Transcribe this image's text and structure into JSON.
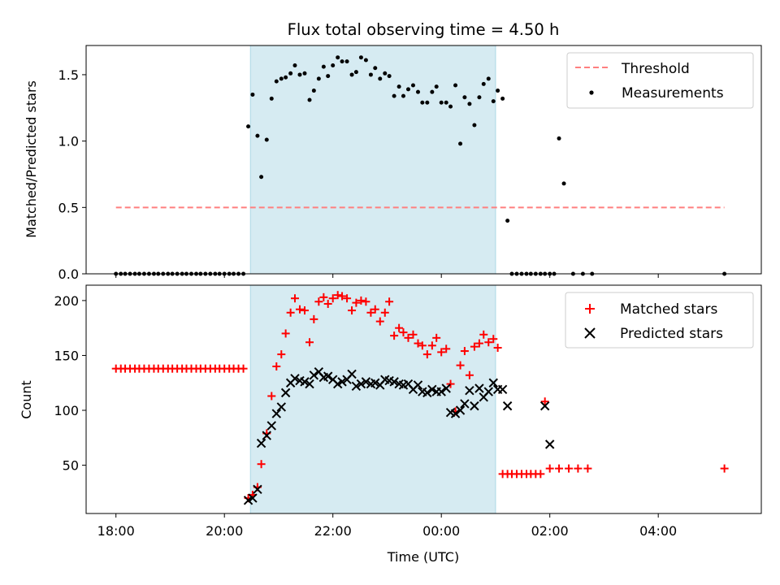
{
  "chart_data": [
    {
      "type": "scatter",
      "title": "Flux total observing time = 4.50 h",
      "xlabel": "",
      "ylabel": "Matched/Predicted stars",
      "xlim_hours": [
        17.45,
        29.9
      ],
      "ylim": [
        0,
        1.72
      ],
      "yticks": [
        0.0,
        0.5,
        1.0,
        1.5
      ],
      "ytick_labels": [
        "0.0",
        "0.5",
        "1.0",
        "1.5"
      ],
      "observing_window_hours": [
        20.48,
        25.0
      ],
      "shade_color": "#add8e6",
      "legend_position": "top-right",
      "threshold": {
        "name": "Threshold",
        "value": 0.5,
        "x_range_hours": [
          18.0,
          29.22
        ],
        "color": "#ff7f7f",
        "style": "dashed"
      },
      "series": [
        {
          "name": "Measurements",
          "marker": "dot",
          "color": "#000000",
          "points": [
            [
              18.0,
              0
            ],
            [
              18.09,
              0
            ],
            [
              18.17,
              0
            ],
            [
              18.26,
              0
            ],
            [
              18.35,
              0
            ],
            [
              18.43,
              0
            ],
            [
              18.52,
              0
            ],
            [
              18.61,
              0
            ],
            [
              18.7,
              0
            ],
            [
              18.78,
              0
            ],
            [
              18.87,
              0
            ],
            [
              18.96,
              0
            ],
            [
              19.04,
              0
            ],
            [
              19.13,
              0
            ],
            [
              19.22,
              0
            ],
            [
              19.3,
              0
            ],
            [
              19.39,
              0
            ],
            [
              19.48,
              0
            ],
            [
              19.56,
              0
            ],
            [
              19.65,
              0
            ],
            [
              19.74,
              0
            ],
            [
              19.83,
              0
            ],
            [
              19.91,
              0
            ],
            [
              20.0,
              0
            ],
            [
              20.09,
              0
            ],
            [
              20.17,
              0
            ],
            [
              20.26,
              0
            ],
            [
              20.35,
              0
            ],
            [
              20.44,
              1.11
            ],
            [
              20.52,
              1.35
            ],
            [
              20.61,
              1.04
            ],
            [
              20.68,
              0.73
            ],
            [
              20.78,
              1.01
            ],
            [
              20.87,
              1.32
            ],
            [
              20.96,
              1.45
            ],
            [
              21.05,
              1.47
            ],
            [
              21.13,
              1.48
            ],
            [
              21.22,
              1.51
            ],
            [
              21.3,
              1.57
            ],
            [
              21.39,
              1.5
            ],
            [
              21.48,
              1.51
            ],
            [
              21.57,
              1.31
            ],
            [
              21.65,
              1.38
            ],
            [
              21.74,
              1.47
            ],
            [
              21.83,
              1.56
            ],
            [
              21.91,
              1.49
            ],
            [
              22.0,
              1.57
            ],
            [
              22.09,
              1.63
            ],
            [
              22.17,
              1.6
            ],
            [
              22.26,
              1.6
            ],
            [
              22.35,
              1.5
            ],
            [
              22.43,
              1.52
            ],
            [
              22.52,
              1.63
            ],
            [
              22.61,
              1.61
            ],
            [
              22.7,
              1.5
            ],
            [
              22.78,
              1.55
            ],
            [
              22.87,
              1.47
            ],
            [
              22.96,
              1.51
            ],
            [
              23.04,
              1.49
            ],
            [
              23.13,
              1.34
            ],
            [
              23.22,
              1.41
            ],
            [
              23.3,
              1.34
            ],
            [
              23.39,
              1.39
            ],
            [
              23.48,
              1.42
            ],
            [
              23.57,
              1.37
            ],
            [
              23.65,
              1.29
            ],
            [
              23.74,
              1.29
            ],
            [
              23.83,
              1.37
            ],
            [
              23.91,
              1.41
            ],
            [
              24.0,
              1.29
            ],
            [
              24.09,
              1.29
            ],
            [
              24.17,
              1.26
            ],
            [
              24.26,
              1.42
            ],
            [
              24.35,
              0.98
            ],
            [
              24.43,
              1.33
            ],
            [
              24.52,
              1.28
            ],
            [
              24.61,
              1.12
            ],
            [
              24.7,
              1.33
            ],
            [
              24.78,
              1.43
            ],
            [
              24.87,
              1.47
            ],
            [
              24.96,
              1.3
            ],
            [
              25.04,
              1.38
            ],
            [
              25.13,
              1.32
            ],
            [
              25.22,
              0.4
            ],
            [
              25.3,
              0
            ],
            [
              25.39,
              0
            ],
            [
              25.48,
              0
            ],
            [
              25.57,
              0
            ],
            [
              25.65,
              0
            ],
            [
              25.74,
              0
            ],
            [
              25.83,
              0
            ],
            [
              25.91,
              0
            ],
            [
              26.0,
              0
            ],
            [
              26.08,
              0
            ],
            [
              26.17,
              1.02
            ],
            [
              26.26,
              0.68
            ],
            [
              26.43,
              0
            ],
            [
              26.61,
              0
            ],
            [
              26.78,
              0
            ],
            [
              29.22,
              0
            ]
          ]
        }
      ]
    },
    {
      "type": "scatter",
      "title": "",
      "xlabel": "Time (UTC)",
      "ylabel": "Count",
      "xlim_hours": [
        17.45,
        29.9
      ],
      "ylim": [
        6,
        214
      ],
      "yticks": [
        50,
        100,
        150,
        200
      ],
      "ytick_labels": [
        "50",
        "100",
        "150",
        "200"
      ],
      "xticks_hours": [
        18,
        20,
        22,
        24,
        26,
        28
      ],
      "xtick_labels": [
        "18:00",
        "20:00",
        "22:00",
        "00:00",
        "02:00",
        "04:00"
      ],
      "observing_window_hours": [
        20.48,
        25.0
      ],
      "shade_color": "#add8e6",
      "legend_position": "top-right",
      "series": [
        {
          "name": "Matched stars",
          "marker": "plus",
          "color": "#ff0000",
          "points": [
            [
              18.0,
              138
            ],
            [
              18.09,
              138
            ],
            [
              18.17,
              138
            ],
            [
              18.26,
              138
            ],
            [
              18.35,
              138
            ],
            [
              18.43,
              138
            ],
            [
              18.52,
              138
            ],
            [
              18.61,
              138
            ],
            [
              18.7,
              138
            ],
            [
              18.78,
              138
            ],
            [
              18.87,
              138
            ],
            [
              18.96,
              138
            ],
            [
              19.04,
              138
            ],
            [
              19.13,
              138
            ],
            [
              19.22,
              138
            ],
            [
              19.3,
              138
            ],
            [
              19.39,
              138
            ],
            [
              19.48,
              138
            ],
            [
              19.56,
              138
            ],
            [
              19.65,
              138
            ],
            [
              19.74,
              138
            ],
            [
              19.83,
              138
            ],
            [
              19.91,
              138
            ],
            [
              20.0,
              138
            ],
            [
              20.09,
              138
            ],
            [
              20.17,
              138
            ],
            [
              20.26,
              138
            ],
            [
              20.35,
              138
            ],
            [
              20.44,
              20
            ],
            [
              20.52,
              23
            ],
            [
              20.61,
              30
            ],
            [
              20.68,
              51
            ],
            [
              20.78,
              79
            ],
            [
              20.87,
              113
            ],
            [
              20.96,
              140
            ],
            [
              21.05,
              151
            ],
            [
              21.13,
              170
            ],
            [
              21.22,
              189
            ],
            [
              21.3,
              202
            ],
            [
              21.39,
              192
            ],
            [
              21.48,
              191
            ],
            [
              21.57,
              162
            ],
            [
              21.65,
              183
            ],
            [
              21.74,
              199
            ],
            [
              21.83,
              203
            ],
            [
              21.91,
              197
            ],
            [
              22.0,
              202
            ],
            [
              22.09,
              205
            ],
            [
              22.17,
              204
            ],
            [
              22.26,
              202
            ],
            [
              22.35,
              191
            ],
            [
              22.43,
              198
            ],
            [
              22.52,
              200
            ],
            [
              22.61,
              199
            ],
            [
              22.7,
              189
            ],
            [
              22.78,
              192
            ],
            [
              22.87,
              181
            ],
            [
              22.96,
              189
            ],
            [
              23.04,
              199
            ],
            [
              23.13,
              168
            ],
            [
              23.22,
              175
            ],
            [
              23.3,
              171
            ],
            [
              23.39,
              166
            ],
            [
              23.48,
              169
            ],
            [
              23.57,
              161
            ],
            [
              23.65,
              159
            ],
            [
              23.74,
              151
            ],
            [
              23.83,
              159
            ],
            [
              23.91,
              166
            ],
            [
              24.0,
              153
            ],
            [
              24.09,
              156
            ],
            [
              24.17,
              124
            ],
            [
              24.26,
              99
            ],
            [
              24.35,
              141
            ],
            [
              24.43,
              154
            ],
            [
              24.52,
              132
            ],
            [
              24.61,
              158
            ],
            [
              24.7,
              161
            ],
            [
              24.78,
              169
            ],
            [
              24.87,
              162
            ],
            [
              24.96,
              165
            ],
            [
              25.04,
              157
            ],
            [
              25.13,
              42
            ],
            [
              25.22,
              42
            ],
            [
              25.3,
              42
            ],
            [
              25.39,
              42
            ],
            [
              25.48,
              42
            ],
            [
              25.57,
              42
            ],
            [
              25.65,
              42
            ],
            [
              25.74,
              42
            ],
            [
              25.83,
              42
            ],
            [
              25.91,
              108
            ],
            [
              26.0,
              47
            ],
            [
              26.17,
              47
            ],
            [
              26.35,
              47
            ],
            [
              26.52,
              47
            ],
            [
              26.7,
              47
            ],
            [
              29.22,
              47
            ]
          ]
        },
        {
          "name": "Predicted stars",
          "marker": "x",
          "color": "#000000",
          "points": [
            [
              20.44,
              18
            ],
            [
              20.52,
              20
            ],
            [
              20.61,
              28
            ],
            [
              20.68,
              70
            ],
            [
              20.78,
              77
            ],
            [
              20.87,
              86
            ],
            [
              20.96,
              97
            ],
            [
              21.05,
              103
            ],
            [
              21.13,
              116
            ],
            [
              21.22,
              125
            ],
            [
              21.3,
              129
            ],
            [
              21.39,
              127
            ],
            [
              21.48,
              126
            ],
            [
              21.57,
              124
            ],
            [
              21.65,
              132
            ],
            [
              21.74,
              135
            ],
            [
              21.83,
              130
            ],
            [
              21.91,
              131
            ],
            [
              22.0,
              128
            ],
            [
              22.09,
              124
            ],
            [
              22.17,
              126
            ],
            [
              22.26,
              128
            ],
            [
              22.35,
              133
            ],
            [
              22.43,
              122
            ],
            [
              22.52,
              124
            ],
            [
              22.61,
              126
            ],
            [
              22.7,
              124
            ],
            [
              22.78,
              125
            ],
            [
              22.87,
              123
            ],
            [
              22.96,
              128
            ],
            [
              23.04,
              127
            ],
            [
              23.13,
              126
            ],
            [
              23.22,
              124
            ],
            [
              23.3,
              123
            ],
            [
              23.39,
              124
            ],
            [
              23.48,
              119
            ],
            [
              23.57,
              123
            ],
            [
              23.65,
              117
            ],
            [
              23.74,
              116
            ],
            [
              23.83,
              119
            ],
            [
              23.91,
              117
            ],
            [
              24.0,
              117
            ],
            [
              24.09,
              120
            ],
            [
              24.17,
              98
            ],
            [
              24.26,
              97
            ],
            [
              24.35,
              100
            ],
            [
              24.43,
              106
            ],
            [
              24.52,
              118
            ],
            [
              24.61,
              104
            ],
            [
              24.7,
              120
            ],
            [
              24.78,
              112
            ],
            [
              24.87,
              117
            ],
            [
              24.96,
              125
            ],
            [
              25.04,
              119
            ],
            [
              25.13,
              119
            ],
            [
              25.22,
              104
            ],
            [
              25.91,
              104
            ],
            [
              26.0,
              69
            ]
          ]
        }
      ]
    }
  ]
}
